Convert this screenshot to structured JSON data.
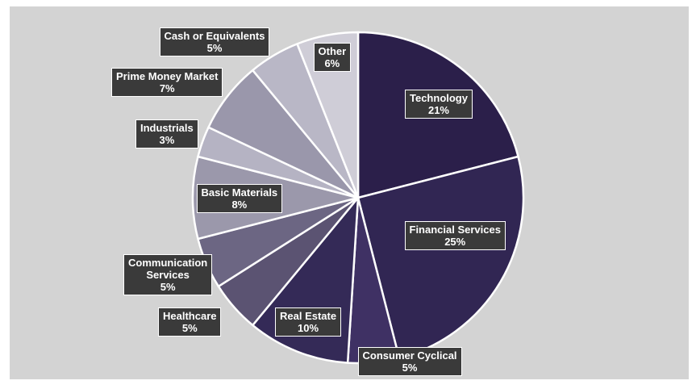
{
  "chart_data": {
    "type": "pie",
    "slices": [
      {
        "label": "Technology",
        "value": 21,
        "value_label": "21%",
        "color": "#2b1f4a"
      },
      {
        "label": "Financial Services",
        "value": 25,
        "value_label": "25%",
        "color": "#312653"
      },
      {
        "label": "Consumer Cyclical",
        "value": 5,
        "value_label": "5%",
        "color": "#3f3164"
      },
      {
        "label": "Real Estate",
        "value": 10,
        "value_label": "10%",
        "color": "#342a57"
      },
      {
        "label": "Healthcare",
        "value": 5,
        "value_label": "5%",
        "color": "#5b5372"
      },
      {
        "label": "Communication Services",
        "label_lines": [
          "Communication",
          "Services"
        ],
        "value": 5,
        "value_label": "5%",
        "color": "#6c6683"
      },
      {
        "label": "Basic Materials",
        "value": 8,
        "value_label": "8%",
        "color": "#9b98ab"
      },
      {
        "label": "Industrials",
        "value": 3,
        "value_label": "3%",
        "color": "#b5b3c3"
      },
      {
        "label": "Prime Money Market",
        "value": 7,
        "value_label": "7%",
        "color": "#9a97ab"
      },
      {
        "label": "Cash or Equivalents",
        "value": 5,
        "value_label": "5%",
        "color": "#b9b7c6"
      },
      {
        "label": "Other",
        "value": 6,
        "value_label": "6%",
        "color": "#cfcdd7"
      }
    ]
  }
}
